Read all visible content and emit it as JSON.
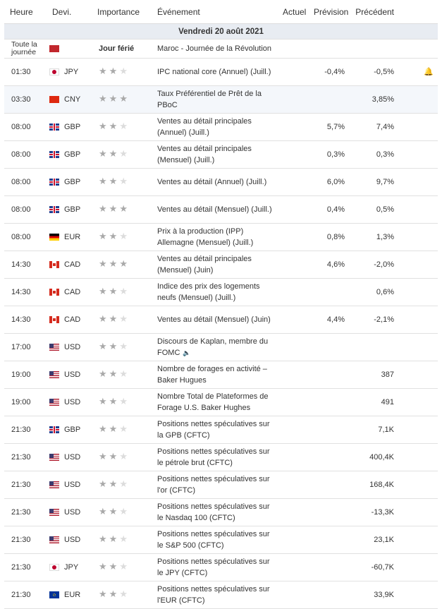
{
  "headers": {
    "time": "Heure",
    "currency": "Devi.",
    "importance": "Importance",
    "event": "Événement",
    "actual": "Actuel",
    "forecast": "Prévision",
    "previous": "Précédent"
  },
  "day_label": "Vendredi 20 août 2021",
  "holiday": {
    "time": "Toute la journée",
    "country": "Maroc",
    "label": "Jour férié",
    "event": "Maroc - Journée de la Révolution"
  },
  "rows": [
    {
      "time": "01:30",
      "flag": "jp",
      "currency": "JPY",
      "stars": 2,
      "event": "IPC national core (Annuel) (Juill.)",
      "actual": "",
      "forecast": "-0,4%",
      "previous": "-0,5%",
      "alert_icon": "bell-plus-icon"
    },
    {
      "time": "03:30",
      "flag": "cn",
      "currency": "CNY",
      "stars": 3,
      "event": "Taux Préférentiel de Prêt de la PBoC",
      "actual": "",
      "forecast": "",
      "previous": "3,85%"
    },
    {
      "time": "08:00",
      "flag": "gb",
      "currency": "GBP",
      "stars": 2,
      "event": "Ventes au détail principales (Annuel) (Juill.)",
      "actual": "",
      "forecast": "5,7%",
      "previous": "7,4%"
    },
    {
      "time": "08:00",
      "flag": "gb",
      "currency": "GBP",
      "stars": 2,
      "event": "Ventes au détail principales (Mensuel) (Juill.)",
      "actual": "",
      "forecast": "0,3%",
      "previous": "0,3%"
    },
    {
      "time": "08:00",
      "flag": "gb",
      "currency": "GBP",
      "stars": 2,
      "event": "Ventes au détail (Annuel) (Juill.)",
      "actual": "",
      "forecast": "6,0%",
      "previous": "9,7%"
    },
    {
      "time": "08:00",
      "flag": "gb",
      "currency": "GBP",
      "stars": 3,
      "event": "Ventes au détail (Mensuel) (Juill.)",
      "actual": "",
      "forecast": "0,4%",
      "previous": "0,5%"
    },
    {
      "time": "08:00",
      "flag": "de",
      "currency": "EUR",
      "stars": 2,
      "event": "Prix à la production (IPP) Allemagne (Mensuel) (Juill.)",
      "actual": "",
      "forecast": "0,8%",
      "previous": "1,3%"
    },
    {
      "time": "14:30",
      "flag": "ca",
      "currency": "CAD",
      "stars": 3,
      "event": "Ventes au détail principales (Mensuel) (Juin)",
      "actual": "",
      "forecast": "4,6%",
      "previous": "-2,0%"
    },
    {
      "time": "14:30",
      "flag": "ca",
      "currency": "CAD",
      "stars": 2,
      "event": "Indice des prix des logements neufs (Mensuel) (Juill.)",
      "actual": "",
      "forecast": "",
      "previous": "0,6%"
    },
    {
      "time": "14:30",
      "flag": "ca",
      "currency": "CAD",
      "stars": 2,
      "event": "Ventes au détail (Mensuel) (Juin)",
      "actual": "",
      "forecast": "4,4%",
      "previous": "-2,1%"
    },
    {
      "time": "17:00",
      "flag": "us",
      "currency": "USD",
      "stars": 2,
      "event": "Discours de Kaplan, membre du FOMC",
      "actual": "",
      "forecast": "",
      "previous": "",
      "speaker_icon": "speaker-icon"
    },
    {
      "time": "19:00",
      "flag": "us",
      "currency": "USD",
      "stars": 2,
      "event": "Nombre de forages en activité – Baker Hugues",
      "actual": "",
      "forecast": "",
      "previous": "387"
    },
    {
      "time": "19:00",
      "flag": "us",
      "currency": "USD",
      "stars": 2,
      "event": "Nombre Total de Plateformes de Forage U.S. Baker Hughes",
      "actual": "",
      "forecast": "",
      "previous": "491"
    },
    {
      "time": "21:30",
      "flag": "gb",
      "currency": "GBP",
      "stars": 2,
      "event": "Positions nettes spéculatives sur la GPB (CFTC)",
      "actual": "",
      "forecast": "",
      "previous": "7,1K"
    },
    {
      "time": "21:30",
      "flag": "us",
      "currency": "USD",
      "stars": 2,
      "event": "Positions nettes spéculatives sur le pétrole brut (CFTC)",
      "actual": "",
      "forecast": "",
      "previous": "400,4K"
    },
    {
      "time": "21:30",
      "flag": "us",
      "currency": "USD",
      "stars": 2,
      "event": "Positions nettes spéculatives sur l'or (CFTC)",
      "actual": "",
      "forecast": "",
      "previous": "168,4K"
    },
    {
      "time": "21:30",
      "flag": "us",
      "currency": "USD",
      "stars": 2,
      "event": "Positions nettes spéculatives sur le Nasdaq 100 (CFTC)",
      "actual": "",
      "forecast": "",
      "previous": "-13,3K"
    },
    {
      "time": "21:30",
      "flag": "us",
      "currency": "USD",
      "stars": 2,
      "event": "Positions nettes spéculatives sur le S&P 500 (CFTC)",
      "actual": "",
      "forecast": "",
      "previous": "23,1K"
    },
    {
      "time": "21:30",
      "flag": "jp",
      "currency": "JPY",
      "stars": 2,
      "event": "Positions nettes spéculatives sur le JPY (CFTC)",
      "actual": "",
      "forecast": "",
      "previous": "-60,7K"
    },
    {
      "time": "21:30",
      "flag": "eu",
      "currency": "EUR",
      "stars": 2,
      "event": "Positions nettes spéculatives sur l'EUR (CFTC)",
      "actual": "",
      "forecast": "",
      "previous": "33,9K"
    }
  ]
}
